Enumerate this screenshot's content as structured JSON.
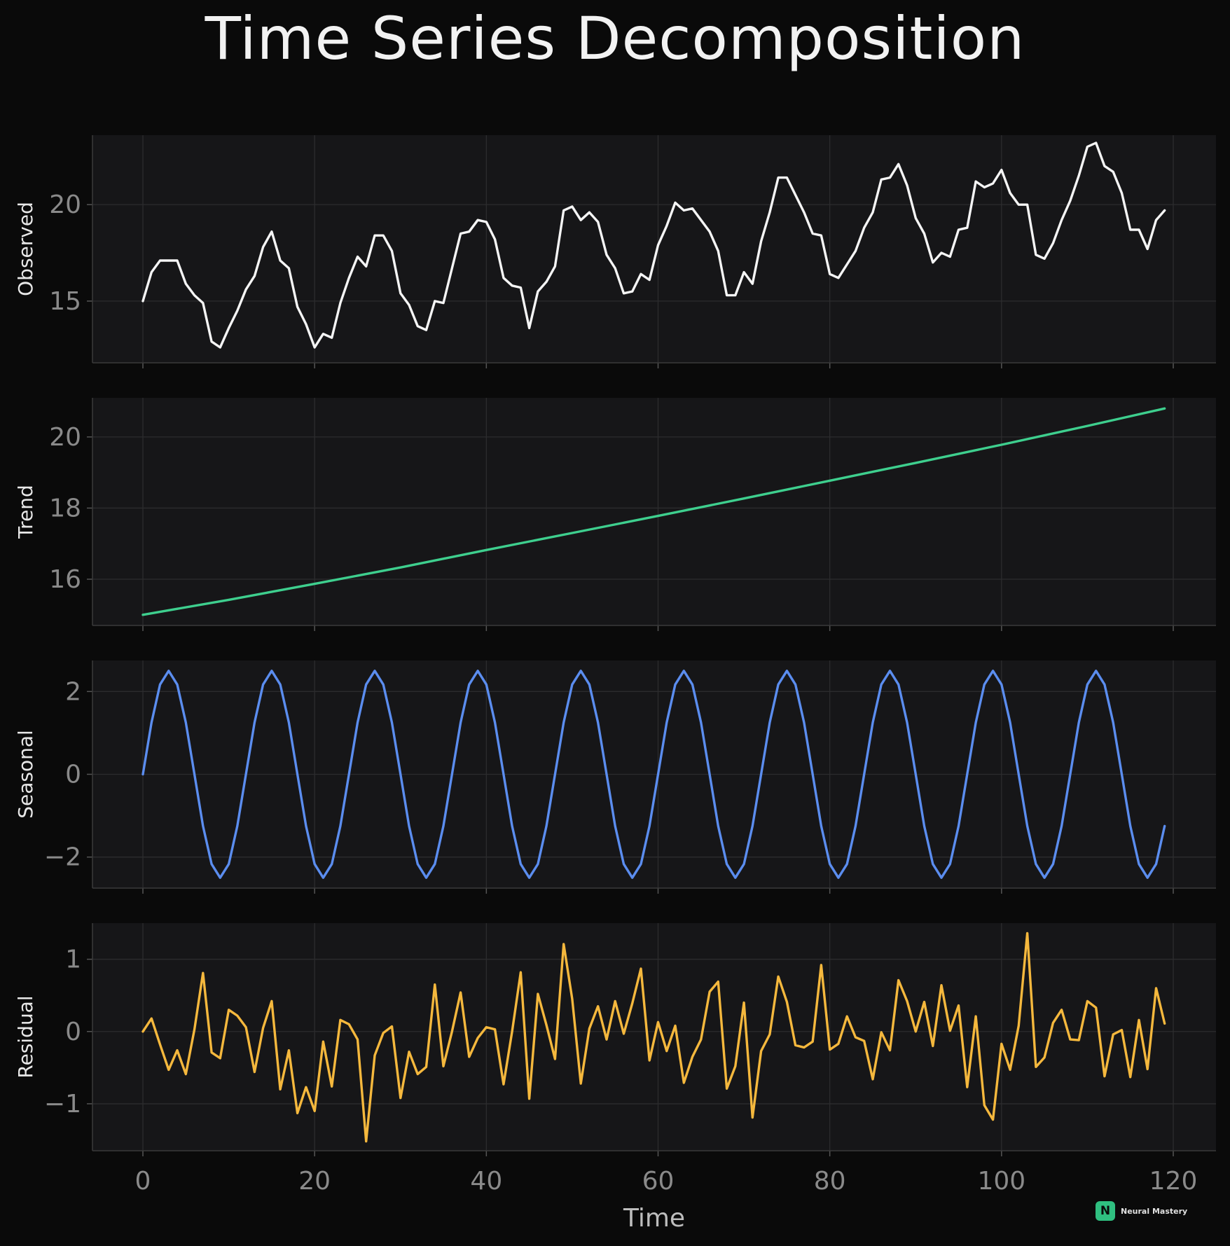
{
  "title": "Time Series Decomposition",
  "colors": {
    "background": "#0a0a0a",
    "panel": "#161618",
    "grid": "#2c2c2e",
    "observed": "#f5f5f5",
    "trend": "#3ecf8e",
    "seasonal": "#5b8def",
    "residual": "#f5b83d"
  },
  "logo": {
    "icon": "N",
    "text": "Neural Mastery"
  },
  "chart_data": [
    {
      "type": "line",
      "panel": "observed",
      "ylabel": "Observed",
      "xlim": [
        -6,
        125
      ],
      "ylim": [
        11.8,
        23.6
      ],
      "xticks": [
        0,
        20,
        40,
        60,
        80,
        100,
        120
      ],
      "yticks": [
        15,
        20
      ],
      "color": "observed",
      "x": [
        0,
        1,
        2,
        3,
        4,
        5,
        6,
        7,
        8,
        9,
        10,
        11,
        12,
        13,
        14,
        15,
        16,
        17,
        18,
        19,
        20,
        21,
        22,
        23,
        24,
        25,
        26,
        27,
        28,
        29,
        30,
        31,
        32,
        33,
        34,
        35,
        36,
        37,
        38,
        39,
        40,
        41,
        42,
        43,
        44,
        45,
        46,
        47,
        48,
        49,
        50,
        51,
        52,
        53,
        54,
        55,
        56,
        57,
        58,
        59,
        60,
        61,
        62,
        63,
        64,
        65,
        66,
        67,
        68,
        69,
        70,
        71,
        72,
        73,
        74,
        75,
        76,
        77,
        78,
        79,
        80,
        81,
        82,
        83,
        84,
        85,
        86,
        87,
        88,
        89,
        90,
        91,
        92,
        93,
        94,
        95,
        96,
        97,
        98,
        99,
        100,
        101,
        102,
        103,
        104,
        105,
        106,
        107,
        108,
        109,
        110,
        111,
        112,
        113,
        114,
        115,
        116,
        117,
        118,
        119
      ],
      "values": [
        15.0,
        16.5,
        17.1,
        17.1,
        17.1,
        15.9,
        15.3,
        14.9,
        12.9,
        12.6,
        13.6,
        14.5,
        15.6,
        16.3,
        17.8,
        18.6,
        17.1,
        16.7,
        14.7,
        13.8,
        12.6,
        13.3,
        13.1,
        14.9,
        16.2,
        17.3,
        16.8,
        18.4,
        18.4,
        17.6,
        15.4,
        14.8,
        13.7,
        13.5,
        15.0,
        14.9,
        16.7,
        18.5,
        18.6,
        19.2,
        19.1,
        18.2,
        16.2,
        15.8,
        15.7,
        13.6,
        15.5,
        16.0,
        16.8,
        19.7,
        19.9,
        19.2,
        19.6,
        19.1,
        17.4,
        16.7,
        15.4,
        15.5,
        16.4,
        16.1,
        17.9,
        18.9,
        20.1,
        19.7,
        19.8,
        19.2,
        18.6,
        17.6,
        15.3,
        15.3,
        16.5,
        15.9,
        18.1,
        19.6,
        21.4,
        21.4,
        20.5,
        19.6,
        18.5,
        18.4,
        16.4,
        16.2,
        16.9,
        17.6,
        18.8,
        19.6,
        21.3,
        21.4,
        22.1,
        21.0,
        19.3,
        18.5,
        17.0,
        17.5,
        17.3,
        18.7,
        18.8,
        21.2,
        20.9,
        21.1,
        21.8,
        20.6,
        20.0,
        20.0,
        17.4,
        17.2,
        18.0,
        19.2,
        20.2,
        21.5,
        23.0,
        23.2,
        22.0,
        21.7,
        20.6,
        18.7,
        18.7,
        17.7,
        19.2,
        19.7
      ]
    },
    {
      "type": "line",
      "panel": "trend",
      "ylabel": "Trend",
      "xlim": [
        -6,
        125
      ],
      "ylim": [
        14.7,
        21.1
      ],
      "xticks": [
        0,
        20,
        40,
        60,
        80,
        100,
        120
      ],
      "yticks": [
        16,
        18,
        20
      ],
      "color": "trend",
      "x": [
        0,
        10,
        20,
        30,
        40,
        50,
        60,
        70,
        80,
        90,
        100,
        110,
        119
      ],
      "values": [
        15.0,
        15.42,
        15.87,
        16.33,
        16.82,
        17.3,
        17.78,
        18.27,
        18.77,
        19.27,
        19.78,
        20.31,
        20.8
      ]
    },
    {
      "type": "line",
      "panel": "seasonal",
      "ylabel": "Seasonal",
      "xlim": [
        -6,
        125
      ],
      "ylim": [
        -2.75,
        2.75
      ],
      "xticks": [
        0,
        20,
        40,
        60,
        80,
        100,
        120
      ],
      "yticks": [
        -2,
        0,
        2
      ],
      "color": "seasonal",
      "period": 12,
      "amplitude": 2.5,
      "x": [
        0,
        1,
        2,
        3,
        4,
        5,
        6,
        7,
        8,
        9,
        10,
        11
      ],
      "values": [
        0,
        1.25,
        2.17,
        2.5,
        2.17,
        1.25,
        0,
        -1.25,
        -2.17,
        -2.5,
        -2.17,
        -1.25
      ],
      "x_end": 119
    },
    {
      "type": "line",
      "panel": "residual",
      "ylabel": "Residual",
      "xlim": [
        -6,
        125
      ],
      "ylim": [
        -1.65,
        1.5
      ],
      "xticks": [
        0,
        20,
        40,
        60,
        80,
        100,
        120
      ],
      "yticks": [
        -1,
        0,
        1
      ],
      "xlabel": "Time",
      "color": "residual",
      "x": [
        0,
        1,
        2,
        3,
        4,
        5,
        6,
        7,
        8,
        9,
        10,
        11,
        12,
        13,
        14,
        15,
        16,
        17,
        18,
        19,
        20,
        21,
        22,
        23,
        24,
        25,
        26,
        27,
        28,
        29,
        30,
        31,
        32,
        33,
        34,
        35,
        36,
        37,
        38,
        39,
        40,
        41,
        42,
        43,
        44,
        45,
        46,
        47,
        48,
        49,
        50,
        51,
        52,
        53,
        54,
        55,
        56,
        57,
        58,
        59,
        60,
        61,
        62,
        63,
        64,
        65,
        66,
        67,
        68,
        69,
        70,
        71,
        72,
        73,
        74,
        75,
        76,
        77,
        78,
        79,
        80,
        81,
        82,
        83,
        84,
        85,
        86,
        87,
        88,
        89,
        90,
        91,
        92,
        93,
        94,
        95,
        96,
        97,
        98,
        99,
        100,
        101,
        102,
        103,
        104,
        105,
        106,
        107,
        108,
        109,
        110,
        111,
        112,
        113,
        114,
        115,
        116,
        117,
        118,
        119
      ],
      "values": [
        0.0,
        0.18,
        -0.18,
        -0.53,
        -0.26,
        -0.59,
        0.03,
        0.81,
        -0.29,
        -0.37,
        0.3,
        0.22,
        0.06,
        -0.56,
        0.05,
        0.42,
        -0.8,
        -0.26,
        -1.13,
        -0.77,
        -1.1,
        -0.14,
        -0.76,
        0.16,
        0.1,
        -0.11,
        -1.52,
        -0.33,
        -0.02,
        0.07,
        -0.92,
        -0.28,
        -0.59,
        -0.49,
        0.65,
        -0.48,
        0.0,
        0.54,
        -0.35,
        -0.09,
        0.06,
        0.03,
        -0.73,
        0.0,
        0.82,
        -0.93,
        0.52,
        0.09,
        -0.38,
        1.21,
        0.45,
        -0.72,
        0.04,
        0.35,
        -0.11,
        0.42,
        -0.03,
        0.39,
        0.87,
        -0.4,
        0.13,
        -0.27,
        0.08,
        -0.71,
        -0.35,
        -0.11,
        0.55,
        0.69,
        -0.79,
        -0.48,
        0.4,
        -1.19,
        -0.27,
        -0.04,
        0.76,
        0.41,
        -0.19,
        -0.22,
        -0.14,
        0.92,
        -0.25,
        -0.17,
        0.21,
        -0.08,
        -0.13,
        -0.66,
        -0.01,
        -0.26,
        0.71,
        0.42,
        0.0,
        0.41,
        -0.2,
        0.64,
        0.01,
        0.36,
        -0.77,
        0.21,
        -1.02,
        -1.22,
        -0.17,
        -0.53,
        0.08,
        1.36,
        -0.49,
        -0.36,
        0.12,
        0.3,
        -0.11,
        -0.12,
        0.42,
        0.33,
        -0.62,
        -0.04,
        0.02,
        -0.63,
        0.16,
        -0.52,
        0.6,
        0.11
      ]
    }
  ]
}
